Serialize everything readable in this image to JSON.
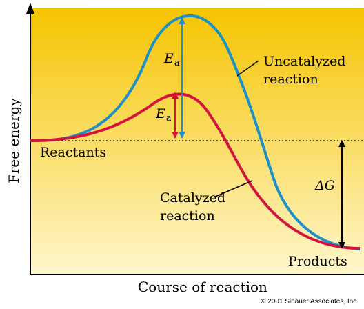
{
  "axes": {
    "y_title": "Free energy",
    "x_title": "Course of reaction"
  },
  "labels": {
    "reactants": "Reactants",
    "products": "Products",
    "uncatalyzed_line1": "Uncatalyzed",
    "uncatalyzed_line2": "reaction",
    "catalyzed_line1": "Catalyzed",
    "catalyzed_line2": "reaction",
    "ea_main": "E",
    "ea_sub": "a",
    "delta_g": "ΔG"
  },
  "colors": {
    "uncatalyzed_curve": "#1e90c8",
    "catalyzed_curve": "#d4143c",
    "background_top": "#f5c400",
    "background_bottom": "#fff6cc"
  },
  "copyright": "© 2001 Sinauer Associates, Inc."
}
